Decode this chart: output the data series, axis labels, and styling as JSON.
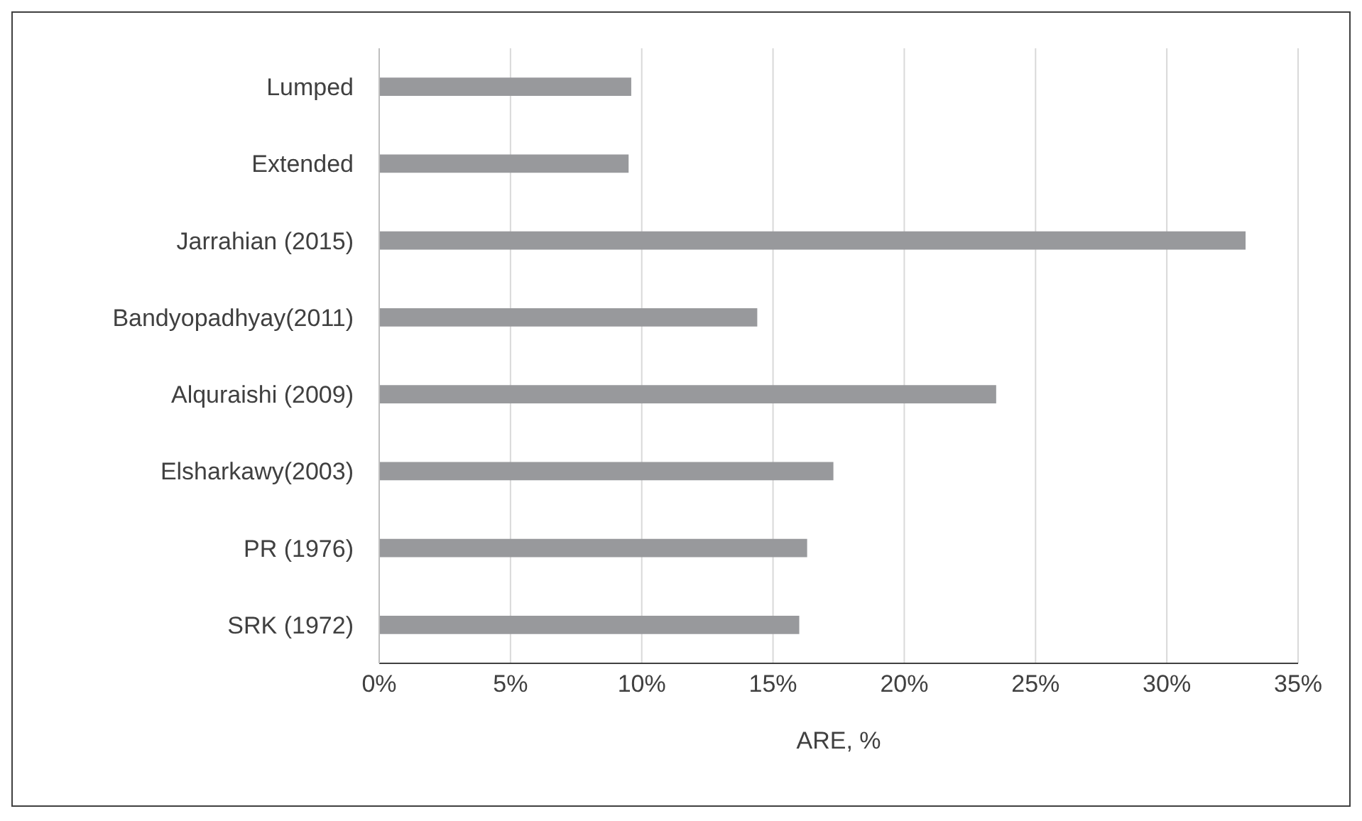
{
  "chart_data": {
    "type": "bar",
    "orientation": "horizontal",
    "xlabel": "ARE, %",
    "categories": [
      "Lumped",
      "Extended",
      "Jarrahian (2015)",
      "Bandyopadhyay(2011)",
      "Alquraishi (2009)",
      "Elsharkawy(2003)",
      "PR (1976)",
      "SRK (1972)"
    ],
    "values": [
      9.6,
      9.5,
      33.0,
      14.4,
      23.5,
      17.3,
      16.3,
      16.0
    ],
    "color": "#98999c",
    "xlim": [
      0,
      35
    ],
    "xticks": [
      {
        "value": 0,
        "label": "0%"
      },
      {
        "value": 5,
        "label": "5%"
      },
      {
        "value": 10,
        "label": "10%"
      },
      {
        "value": 15,
        "label": "15%"
      },
      {
        "value": 20,
        "label": "20%"
      },
      {
        "value": 25,
        "label": "25%"
      },
      {
        "value": 30,
        "label": "30%"
      },
      {
        "value": 35,
        "label": "35%"
      }
    ],
    "grid": "x",
    "legend": false
  }
}
